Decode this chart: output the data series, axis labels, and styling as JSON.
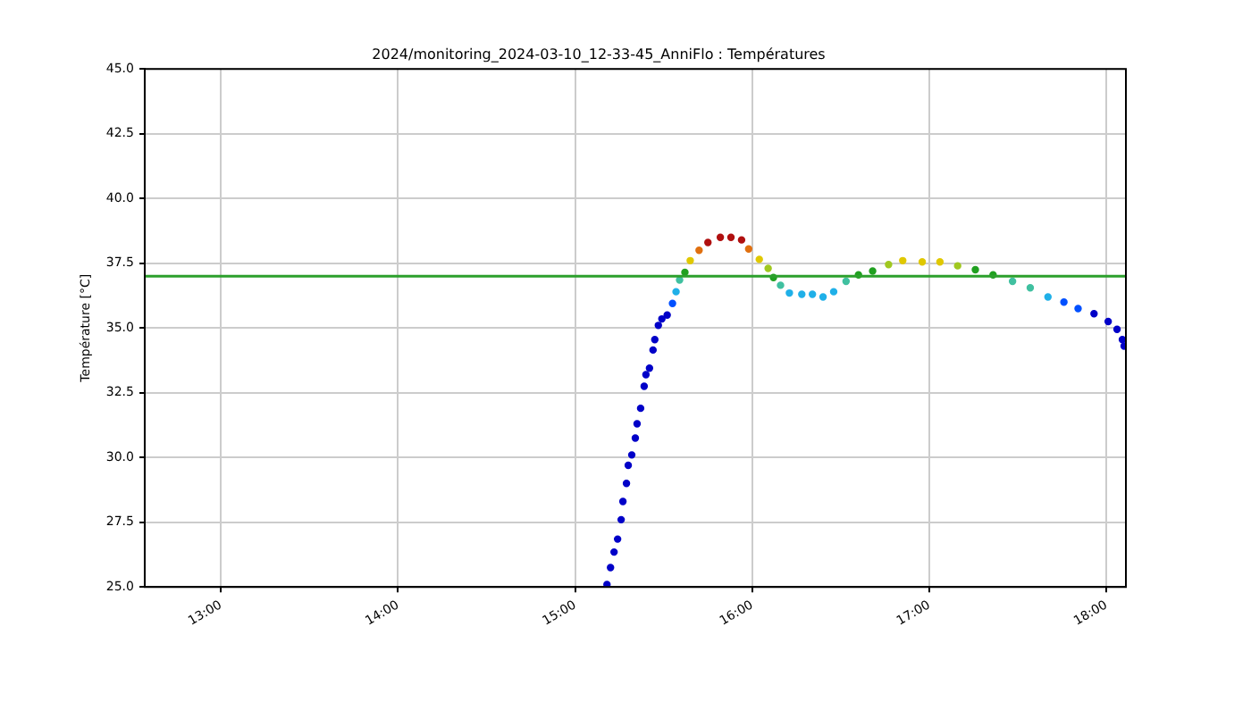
{
  "chart_data": {
    "type": "scatter",
    "title": "2024/monitoring_2024-03-10_12-33-45_AnniFlo : Températures",
    "ylabel": "Température [°C]",
    "x": [
      15.18,
      15.2,
      15.22,
      15.24,
      15.26,
      15.27,
      15.29,
      15.3,
      15.32,
      15.34,
      15.35,
      15.37,
      15.39,
      15.4,
      15.42,
      15.44,
      15.45,
      15.47,
      15.49,
      15.52,
      15.55,
      15.57,
      15.59,
      15.62,
      15.65,
      15.7,
      15.75,
      15.82,
      15.88,
      15.94,
      15.98,
      16.04,
      16.09,
      16.12,
      16.16,
      16.21,
      16.28,
      16.34,
      16.4,
      16.46,
      16.53,
      16.6,
      16.68,
      16.77,
      16.85,
      16.96,
      17.06,
      17.16,
      17.26,
      17.36,
      17.47,
      17.57,
      17.67,
      17.76,
      17.84,
      17.93,
      18.01,
      18.06,
      18.09,
      18.1
    ],
    "values": [
      25.1,
      25.75,
      26.35,
      26.85,
      27.6,
      28.3,
      29.0,
      29.7,
      30.1,
      30.75,
      31.3,
      31.9,
      32.75,
      33.2,
      33.45,
      34.15,
      34.55,
      35.1,
      35.35,
      35.5,
      35.95,
      36.4,
      36.85,
      37.15,
      37.6,
      38.0,
      38.3,
      38.5,
      38.5,
      38.4,
      38.05,
      37.65,
      37.3,
      36.95,
      36.65,
      36.35,
      36.3,
      36.3,
      36.2,
      36.4,
      36.8,
      37.05,
      37.2,
      37.45,
      37.6,
      37.55,
      37.55,
      37.4,
      37.25,
      37.05,
      36.8,
      36.55,
      36.2,
      36.0,
      35.75,
      35.55,
      35.25,
      34.95,
      34.55,
      34.3
    ],
    "colors": [
      "#0000c8",
      "#0000c8",
      "#0000c8",
      "#0000c8",
      "#0000c8",
      "#0000c8",
      "#0000c8",
      "#0000c8",
      "#0000c8",
      "#0000c8",
      "#0000c8",
      "#0000c8",
      "#0000c8",
      "#0000c8",
      "#0000c8",
      "#0000c8",
      "#0000c8",
      "#0000c8",
      "#0000c8",
      "#0000c8",
      "#0050ff",
      "#20b0e8",
      "#40c0a0",
      "#20a020",
      "#e0c800",
      "#e07010",
      "#b01010",
      "#b01010",
      "#b01010",
      "#b01010",
      "#e07010",
      "#e0c800",
      "#a0c820",
      "#20a020",
      "#40c0a0",
      "#20b0e8",
      "#20b0e8",
      "#20b0e8",
      "#20b0e8",
      "#20b0e8",
      "#40c0a0",
      "#20a020",
      "#20a020",
      "#a0c820",
      "#e0c800",
      "#e0c800",
      "#e0c800",
      "#a0c820",
      "#20a020",
      "#20a020",
      "#40c0a0",
      "#40c0a0",
      "#20b0e8",
      "#0050ff",
      "#0050ff",
      "#0000c8",
      "#0000c8",
      "#0000c8",
      "#0000c8",
      "#0000c8"
    ],
    "xlim": [
      12.57,
      18.11
    ],
    "xticks": [
      {
        "value": 13,
        "label": "13:00"
      },
      {
        "value": 14,
        "label": "14:00"
      },
      {
        "value": 15,
        "label": "15:00"
      },
      {
        "value": 16,
        "label": "16:00"
      },
      {
        "value": 17,
        "label": "17:00"
      },
      {
        "value": 18,
        "label": "18:00"
      }
    ],
    "ylim": [
      25,
      45
    ],
    "yticks": [
      {
        "value": 25,
        "label": "25.0"
      },
      {
        "value": 27.5,
        "label": "27.5"
      },
      {
        "value": 30,
        "label": "30.0"
      },
      {
        "value": 32.5,
        "label": "32.5"
      },
      {
        "value": 35,
        "label": "35.0"
      },
      {
        "value": 37.5,
        "label": "37.5"
      },
      {
        "value": 40,
        "label": "40.0"
      },
      {
        "value": 42.5,
        "label": "42.5"
      },
      {
        "value": 45,
        "label": "45.0"
      }
    ],
    "ref_lines": [
      {
        "axis": "y",
        "value": 37,
        "label": null,
        "color": "#2ca02c"
      }
    ],
    "grid": true,
    "legend": false,
    "marker": "circle"
  }
}
